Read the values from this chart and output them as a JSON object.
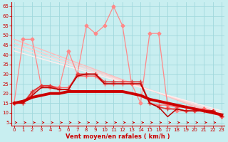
{
  "bg_color": "#c8eef0",
  "grid_color": "#a0d8dc",
  "xlabel": "Vent moyen/en rafales ( km/h )",
  "xlabel_color": "#cc0000",
  "tick_color": "#cc0000",
  "ylabel_ticks": [
    5,
    10,
    15,
    20,
    25,
    30,
    35,
    40,
    45,
    50,
    55,
    60,
    65
  ],
  "xlabel_ticks": [
    0,
    1,
    2,
    3,
    4,
    5,
    6,
    7,
    8,
    9,
    10,
    11,
    12,
    13,
    14,
    15,
    16,
    17,
    18,
    19,
    20,
    21,
    22,
    23
  ],
  "xlim": [
    -0.3,
    23.3
  ],
  "ylim": [
    3.5,
    67
  ],
  "series": [
    {
      "x": [
        0,
        1,
        2,
        3,
        4,
        5,
        6,
        7,
        8,
        9,
        10,
        11,
        12,
        13,
        14,
        15,
        16,
        17,
        18,
        19,
        20,
        21,
        22,
        23
      ],
      "y": [
        15,
        48,
        48,
        24,
        23,
        23,
        42,
        30,
        55,
        51,
        55,
        65,
        55,
        25,
        15,
        51,
        51,
        13,
        11,
        11,
        11,
        12,
        11,
        8
      ],
      "color": "#ff8888",
      "lw": 0.9,
      "marker": "D",
      "ms": 2.5,
      "zorder": 3
    },
    {
      "x": [
        0,
        23
      ],
      "y": [
        48,
        8
      ],
      "color": "#ffbbbb",
      "lw": 1.0,
      "marker": null,
      "ms": 0,
      "zorder": 2
    },
    {
      "x": [
        0,
        23
      ],
      "y": [
        46,
        9
      ],
      "color": "#ffcccc",
      "lw": 1.0,
      "marker": null,
      "ms": 0,
      "zorder": 2
    },
    {
      "x": [
        0,
        23
      ],
      "y": [
        44,
        10
      ],
      "color": "#ffdddd",
      "lw": 1.0,
      "marker": null,
      "ms": 0,
      "zorder": 2
    },
    {
      "x": [
        0,
        23
      ],
      "y": [
        42,
        11
      ],
      "color": "#ffeeee",
      "lw": 1.0,
      "marker": null,
      "ms": 0,
      "zorder": 2
    },
    {
      "x": [
        0,
        1,
        2,
        3,
        4,
        5,
        6,
        7,
        8,
        9,
        10,
        11,
        12,
        13,
        14,
        15,
        16,
        17,
        18,
        19,
        20,
        21,
        22,
        23
      ],
      "y": [
        15,
        15,
        20,
        24,
        24,
        23,
        23,
        29,
        29,
        29,
        25,
        25,
        25,
        25,
        25,
        15,
        14,
        14,
        13,
        13,
        12,
        12,
        11,
        8
      ],
      "color": "#ff6666",
      "lw": 1.0,
      "marker": "+",
      "ms": 4,
      "zorder": 4
    },
    {
      "x": [
        0,
        1,
        2,
        3,
        4,
        5,
        6,
        7,
        8,
        9,
        10,
        11,
        12,
        13,
        14,
        15,
        16,
        17,
        18,
        19,
        20,
        21,
        22,
        23
      ],
      "y": [
        15,
        15,
        21,
        24,
        24,
        22,
        22,
        30,
        30,
        30,
        26,
        26,
        26,
        26,
        26,
        15,
        13,
        12,
        12,
        11,
        11,
        11,
        11,
        8
      ],
      "color": "#dd3333",
      "lw": 1.2,
      "marker": "+",
      "ms": 4,
      "zorder": 5
    },
    {
      "x": [
        0,
        1,
        2,
        3,
        4,
        5,
        6,
        7,
        8,
        9,
        10,
        11,
        12,
        13,
        14,
        15,
        16,
        17,
        18,
        19,
        20,
        21,
        22,
        23
      ],
      "y": [
        15,
        16,
        18,
        19,
        20,
        20,
        21,
        21,
        21,
        21,
        21,
        21,
        21,
        20,
        19,
        17,
        16,
        15,
        14,
        13,
        12,
        11,
        10,
        9
      ],
      "color": "#cc0000",
      "lw": 2.8,
      "marker": null,
      "ms": 0,
      "zorder": 6
    },
    {
      "x": [
        0,
        1,
        2,
        3,
        4,
        5,
        6,
        7,
        8,
        9,
        10,
        11,
        12,
        13,
        14,
        15,
        16,
        17,
        18,
        19,
        20,
        21,
        22,
        23
      ],
      "y": [
        15,
        15,
        19,
        23,
        23,
        22,
        22,
        29,
        30,
        30,
        25,
        25,
        25,
        25,
        25,
        15,
        13,
        8,
        12,
        11,
        11,
        11,
        11,
        8
      ],
      "color": "#bb0000",
      "lw": 1.1,
      "marker": null,
      "ms": 0,
      "zorder": 5
    }
  ]
}
